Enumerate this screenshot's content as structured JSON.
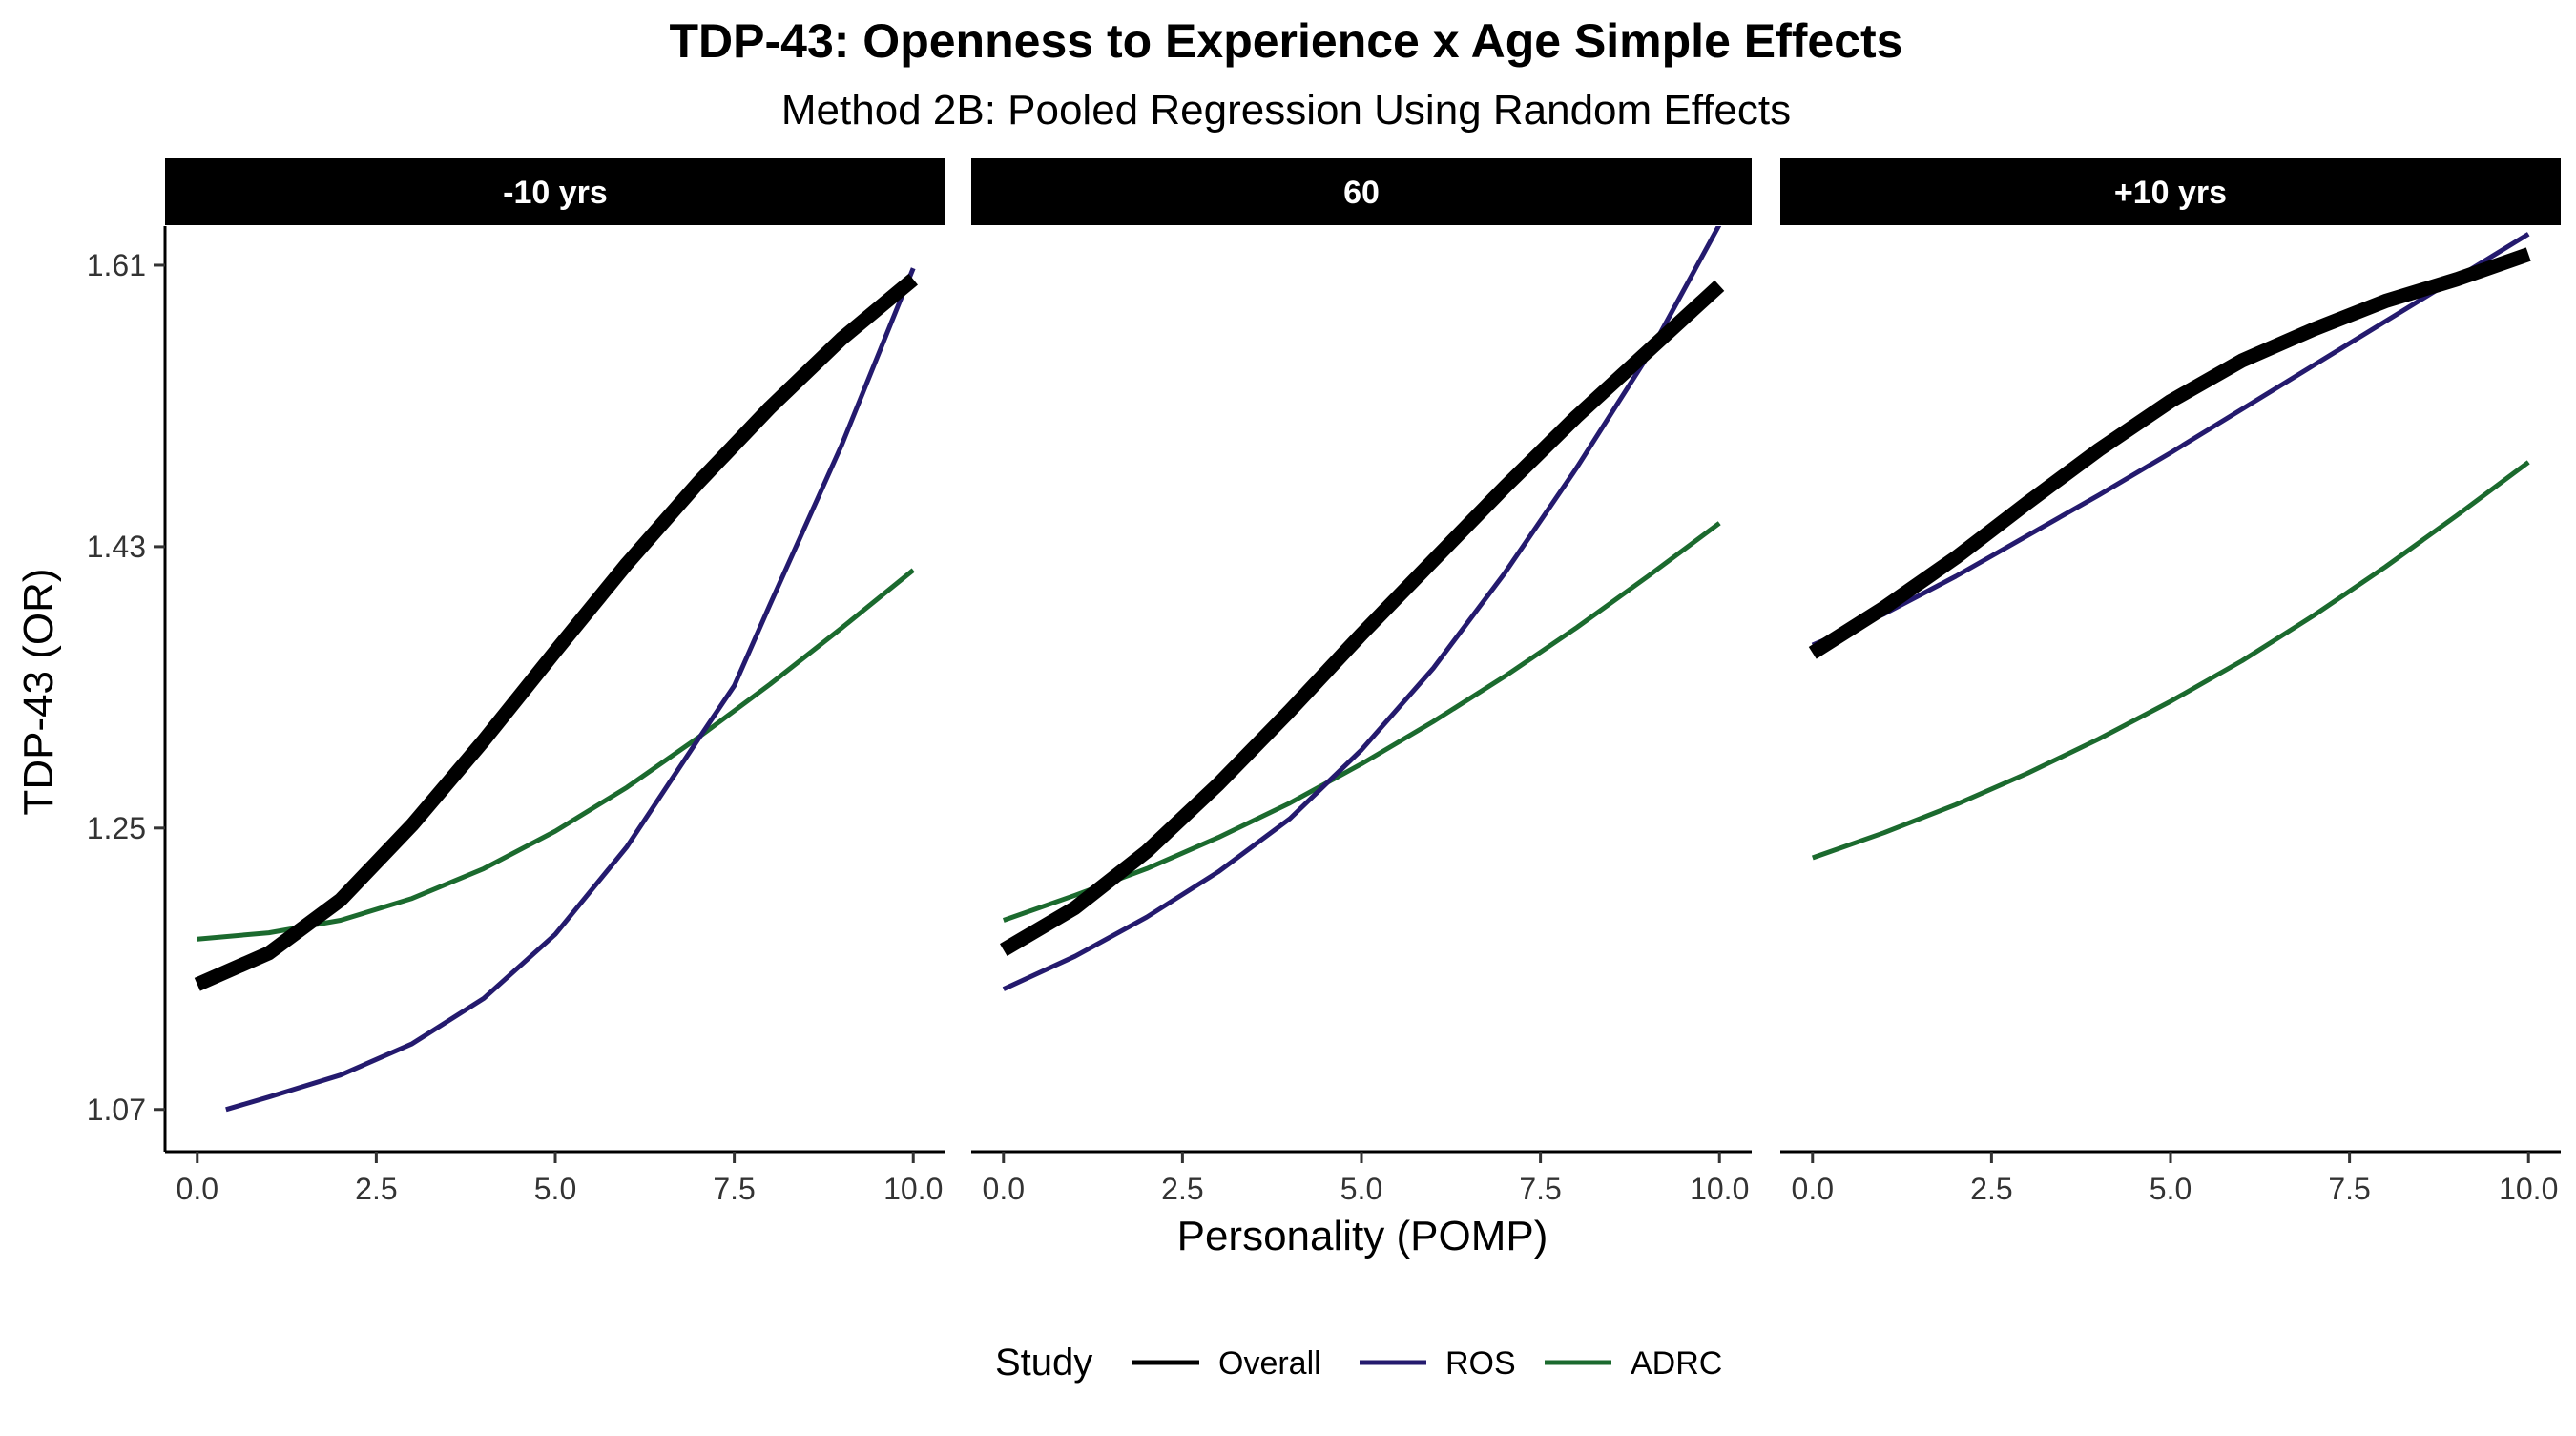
{
  "chart_data": {
    "type": "line",
    "title": "TDP-43: Openness to Experience x Age Simple Effects",
    "subtitle": "Method 2B: Pooled Regression Using Random Effects",
    "xlabel": "Personality (POMP)",
    "ylabel": "TDP-43 (OR)",
    "x_ticks": [
      0.0,
      2.5,
      5.0,
      7.5,
      10.0
    ],
    "x_tick_labels": [
      "0.0",
      "2.5",
      "5.0",
      "7.5",
      "10.0"
    ],
    "y_ticks": [
      1.07,
      1.25,
      1.43,
      1.61
    ],
    "y_tick_labels": [
      "1.07",
      "1.25",
      "1.43",
      "1.61"
    ],
    "xlim": [
      -0.45,
      10.45
    ],
    "ylim": [
      1.043,
      1.635
    ],
    "grid": false,
    "legend": {
      "title": "Study",
      "position": "bottom",
      "entries": [
        {
          "label": "Overall",
          "color": "#000000"
        },
        {
          "label": "ROS",
          "color": "#241a6e"
        },
        {
          "label": "ADRC",
          "color": "#1b6a2e"
        }
      ]
    },
    "panels": [
      {
        "label": "-10 yrs",
        "series": [
          {
            "name": "Overall",
            "color": "#000000",
            "x": [
              0,
              1,
              2,
              3,
              4,
              5,
              6,
              7,
              8,
              9,
              10
            ],
            "y": [
              1.15,
              1.17,
              1.204,
              1.252,
              1.306,
              1.363,
              1.419,
              1.471,
              1.519,
              1.563,
              1.601
            ]
          },
          {
            "name": "ROS",
            "color": "#241a6e",
            "x": [
              0.4,
              1,
              2,
              3,
              4,
              5,
              6,
              7,
              7.5,
              8,
              9,
              10
            ],
            "y": [
              1.07,
              1.078,
              1.092,
              1.112,
              1.141,
              1.182,
              1.238,
              1.307,
              1.341,
              1.393,
              1.495,
              1.608
            ]
          },
          {
            "name": "ADRC",
            "color": "#1b6a2e",
            "x": [
              0,
              1,
              2,
              3,
              4,
              5,
              6,
              7,
              8,
              9,
              10
            ],
            "y": [
              1.179,
              1.183,
              1.191,
              1.205,
              1.224,
              1.248,
              1.276,
              1.308,
              1.342,
              1.378,
              1.415
            ]
          }
        ]
      },
      {
        "label": "60",
        "series": [
          {
            "name": "Overall",
            "color": "#000000",
            "x": [
              0,
              1,
              2,
              3,
              4,
              5,
              6,
              7,
              8,
              9,
              10
            ],
            "y": [
              1.172,
              1.199,
              1.235,
              1.278,
              1.325,
              1.374,
              1.421,
              1.468,
              1.513,
              1.555,
              1.597
            ]
          },
          {
            "name": "ROS",
            "color": "#241a6e",
            "x": [
              0,
              1,
              2,
              3,
              4,
              5,
              6,
              7,
              8,
              9,
              10
            ],
            "y": [
              1.147,
              1.168,
              1.193,
              1.222,
              1.256,
              1.3,
              1.352,
              1.413,
              1.48,
              1.552,
              1.636
            ]
          },
          {
            "name": "ADRC",
            "color": "#1b6a2e",
            "x": [
              0,
              1,
              2,
              3,
              4,
              5,
              6,
              7,
              8,
              9,
              10
            ],
            "y": [
              1.191,
              1.207,
              1.224,
              1.244,
              1.266,
              1.291,
              1.318,
              1.347,
              1.378,
              1.411,
              1.445
            ]
          }
        ]
      },
      {
        "label": "+10 yrs",
        "series": [
          {
            "name": "Overall",
            "color": "#000000",
            "x": [
              0,
              1,
              2,
              3,
              4,
              5,
              6,
              7,
              8,
              9,
              10
            ],
            "y": [
              1.362,
              1.391,
              1.423,
              1.458,
              1.492,
              1.523,
              1.549,
              1.569,
              1.587,
              1.601,
              1.617
            ]
          },
          {
            "name": "ROS",
            "color": "#241a6e",
            "x": [
              0,
              1,
              2,
              3,
              4,
              5,
              6,
              7,
              8,
              9,
              10
            ],
            "y": [
              1.367,
              1.387,
              1.411,
              1.437,
              1.463,
              1.49,
              1.518,
              1.546,
              1.574,
              1.602,
              1.63
            ]
          },
          {
            "name": "ADRC",
            "color": "#1b6a2e",
            "x": [
              0,
              1,
              2,
              3,
              4,
              5,
              6,
              7,
              8,
              9,
              10
            ],
            "y": [
              1.231,
              1.247,
              1.265,
              1.285,
              1.307,
              1.331,
              1.357,
              1.386,
              1.417,
              1.45,
              1.484
            ]
          }
        ]
      }
    ]
  }
}
